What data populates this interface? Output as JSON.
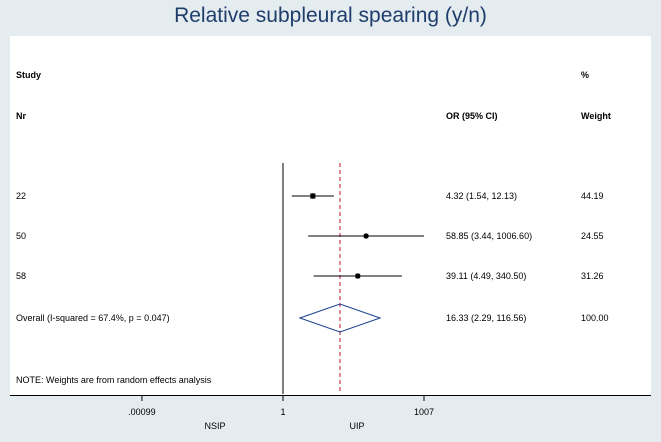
{
  "chart_data": {
    "type": "forest",
    "title": "Relative subpleural spearing (y/n)",
    "headers": {
      "study_line1": "Study",
      "study_line2": "Nr",
      "or_label": "OR (95% CI)",
      "weight_line1": "%",
      "weight_line2": "Weight"
    },
    "studies": [
      {
        "label": "22",
        "or": 4.32,
        "ci_low": 1.54,
        "ci_high": 12.13,
        "or_text": "4.32 (1.54, 12.13)",
        "weight": 44.19,
        "weight_text": "44.19"
      },
      {
        "label": "50",
        "or": 58.85,
        "ci_low": 3.44,
        "ci_high": 1006.6,
        "or_text": "58.85 (3.44, 1006.60)",
        "weight": 24.55,
        "weight_text": "24.55"
      },
      {
        "label": "58",
        "or": 39.11,
        "ci_low": 4.49,
        "ci_high": 340.5,
        "or_text": "39.11 (4.49, 340.50)",
        "weight": 31.26,
        "weight_text": "31.26"
      }
    ],
    "overall": {
      "label": "Overall  (I-squared = 67.4%, p = 0.047)",
      "or": 16.33,
      "ci_low": 2.29,
      "ci_high": 116.56,
      "or_text": "16.33 (2.29, 116.56)",
      "weight_text": "100.00"
    },
    "note": "NOTE: Weights are from random effects analysis",
    "x_axis": {
      "scale": "log",
      "ticks": [
        {
          "value": 0.00099,
          "label": ".00099"
        },
        {
          "value": 1,
          "label": "1"
        },
        {
          "value": 1007,
          "label": "1007"
        }
      ]
    },
    "x_side_labels": {
      "left": "NSIP",
      "right": "UIP"
    },
    "colors": {
      "diamond": "#1a3f8f",
      "reference_line": "#c8102e",
      "markers": "#000000"
    }
  }
}
